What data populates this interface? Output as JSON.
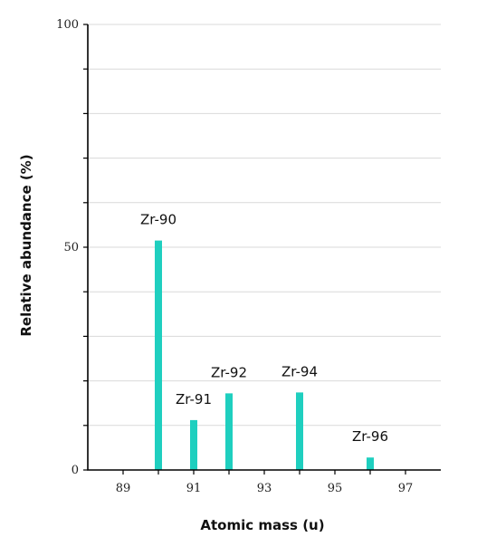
{
  "chart_data": {
    "type": "bar",
    "title": "",
    "xlabel": "Atomic mass (u)",
    "ylabel": "Relative abundance (%)",
    "xlim": [
      88,
      98
    ],
    "ylim": [
      0,
      100
    ],
    "x_ticks": [
      89,
      91,
      93,
      95,
      97
    ],
    "y_ticks": [
      0,
      50,
      100
    ],
    "grid": true,
    "colors": {
      "bar": "#1fcfbf"
    },
    "bars": [
      {
        "label": "Zr-90",
        "x": 90,
        "value": 51.5
      },
      {
        "label": "Zr-91",
        "x": 91,
        "value": 11.2
      },
      {
        "label": "Zr-92",
        "x": 92,
        "value": 17.2
      },
      {
        "label": "Zr-94",
        "x": 94,
        "value": 17.4
      },
      {
        "label": "Zr-96",
        "x": 96,
        "value": 2.8
      }
    ]
  }
}
